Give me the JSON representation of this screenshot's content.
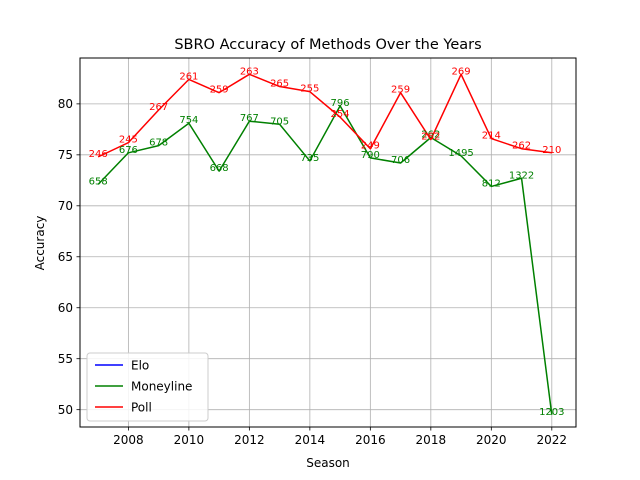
{
  "chart_data": {
    "type": "line",
    "title": "SBRO Accuracy of Methods Over the Years",
    "xlabel": "Season",
    "ylabel": "Accuracy",
    "xlim": [
      2006.4,
      2022.8
    ],
    "ylim": [
      48.3,
      84.5
    ],
    "x_ticks": [
      2008,
      2010,
      2012,
      2014,
      2016,
      2018,
      2020,
      2022
    ],
    "y_ticks": [
      50,
      55,
      60,
      65,
      70,
      75,
      80
    ],
    "grid": true,
    "legend_position": "lower-left",
    "series": [
      {
        "name": "Elo",
        "color": "#0000ff",
        "x": [],
        "values": [],
        "labels": []
      },
      {
        "name": "Moneyline",
        "color": "#008000",
        "x": [
          2007,
          2008,
          2009,
          2010,
          2011,
          2012,
          2013,
          2014,
          2015,
          2016,
          2017,
          2018,
          2019,
          2020,
          2021,
          2022
        ],
        "values": [
          72.1,
          75.2,
          75.9,
          78.1,
          73.4,
          78.3,
          78.0,
          74.4,
          79.8,
          74.7,
          74.2,
          76.7,
          74.9,
          71.9,
          72.7,
          49.5
        ],
        "labels": [
          "658",
          "676",
          "678",
          "754",
          "668",
          "767",
          "705",
          "735",
          "796",
          "790",
          "706",
          "262",
          "1495",
          "812",
          "1322",
          "1203"
        ]
      },
      {
        "name": "Poll",
        "color": "#ff0000",
        "x": [
          2007,
          2008,
          2009,
          2010,
          2011,
          2012,
          2013,
          2014,
          2015,
          2016,
          2017,
          2018,
          2019,
          2020,
          2021,
          2022
        ],
        "values": [
          74.8,
          76.2,
          79.4,
          82.4,
          81.1,
          82.9,
          81.7,
          81.2,
          78.7,
          75.6,
          81.1,
          76.5,
          82.9,
          76.6,
          75.6,
          75.2
        ],
        "labels": [
          "246",
          "245",
          "267",
          "261",
          "259",
          "263",
          "265",
          "255",
          "254",
          "249",
          "259",
          "262",
          "269",
          "214",
          "262",
          "210"
        ]
      }
    ]
  }
}
